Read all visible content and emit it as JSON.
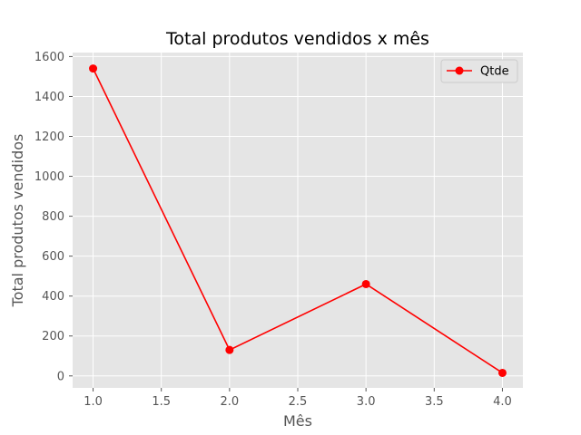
{
  "chart_data": {
    "type": "line",
    "title": "Total produtos vendidos x mês",
    "xlabel": "Mês",
    "ylabel": "Total produtos vendidos",
    "xlim": [
      0.85,
      4.15
    ],
    "ylim": [
      -60,
      1620
    ],
    "x_ticks": [
      1.0,
      1.5,
      2.0,
      2.5,
      3.0,
      3.5,
      4.0
    ],
    "x_tick_labels": [
      "1.0",
      "1.5",
      "2.0",
      "2.5",
      "3.0",
      "3.5",
      "4.0"
    ],
    "y_ticks": [
      0,
      200,
      400,
      600,
      800,
      1000,
      1200,
      1400,
      1600
    ],
    "y_tick_labels": [
      "0",
      "200",
      "400",
      "600",
      "800",
      "1000",
      "1200",
      "1400",
      "1600"
    ],
    "grid": true,
    "legend_position": "top-right",
    "series": [
      {
        "name": "Qtde",
        "color": "#ff0000",
        "marker": "circle",
        "x": [
          1,
          2,
          3,
          4
        ],
        "y": [
          1540,
          130,
          460,
          15
        ]
      }
    ],
    "plot_background": "#e5e5e5",
    "grid_color": "#ffffff"
  }
}
